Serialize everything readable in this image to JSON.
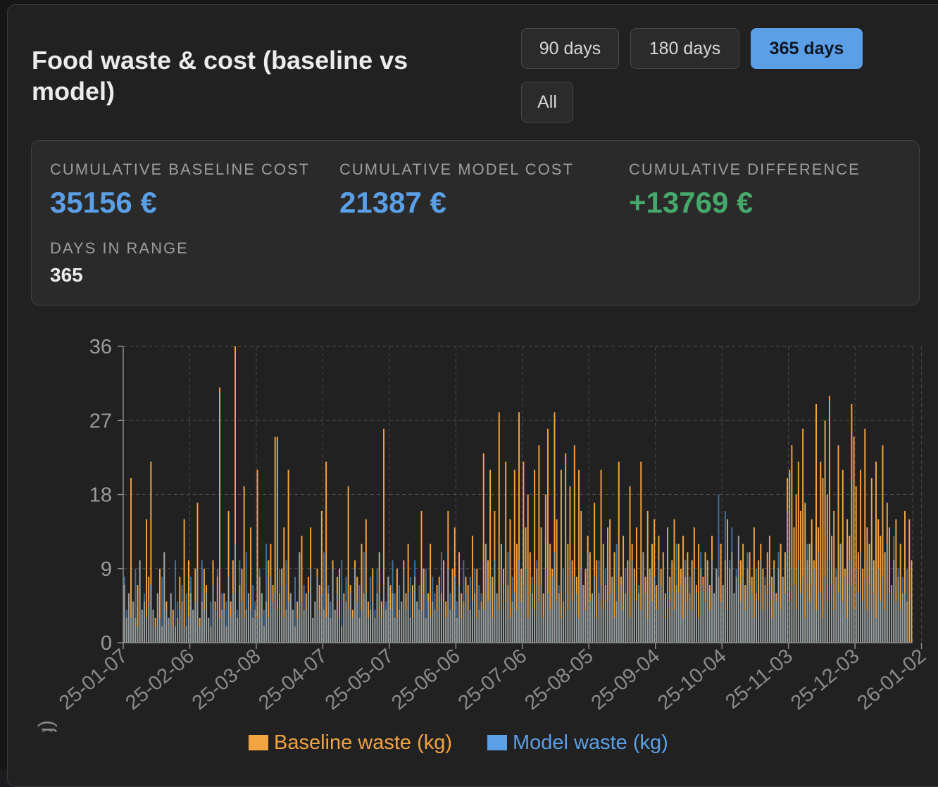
{
  "header": {
    "title": "Food waste & cost (baseline vs model)"
  },
  "range_buttons": [
    {
      "label": "90 days",
      "active": false
    },
    {
      "label": "180 days",
      "active": false
    },
    {
      "label": "365 days",
      "active": true
    },
    {
      "label": "All",
      "active": false
    }
  ],
  "stats": {
    "baseline_label": "CUMULATIVE BASELINE COST",
    "baseline_value": "35156 €",
    "model_label": "CUMULATIVE MODEL COST",
    "model_value": "21387 €",
    "difference_label": "CUMULATIVE DIFFERENCE",
    "difference_value": "+13769 €",
    "days_label": "DAYS IN RANGE",
    "days_value": "365"
  },
  "colors": {
    "baseline": "#f2a441",
    "model": "#5b9fe6",
    "positive": "#46a86a",
    "accent": "#5b9fe6"
  },
  "chart_data": {
    "type": "bar",
    "title": "",
    "xlabel": "",
    "ylabel": "Waste (kg)",
    "ylim": [
      0,
      36
    ],
    "yticks": [
      0,
      9,
      18,
      27,
      36
    ],
    "x_start": "25-01-07",
    "x_end": "26-01-06",
    "xticks": [
      "25-01-07",
      "25-02-06",
      "25-03-08",
      "25-04-07",
      "25-05-07",
      "25-06-06",
      "25-07-06",
      "25-08-05",
      "25-09-04",
      "25-10-04",
      "25-11-03",
      "25-12-03",
      "26-01-02"
    ],
    "grid": {
      "x": true,
      "y": true,
      "style": "dashed"
    },
    "legend_position": "bottom",
    "series": [
      {
        "name": "Baseline waste (kg)",
        "color": "#f2a441",
        "values": [
          7,
          3,
          6,
          20,
          5,
          3,
          7,
          10,
          4,
          5,
          15,
          8,
          22,
          4,
          3,
          6,
          9,
          2,
          11,
          5,
          3,
          6,
          4,
          2,
          3,
          8,
          5,
          15,
          2,
          10,
          6,
          4,
          9,
          17,
          3,
          5,
          9,
          7,
          3,
          2,
          10,
          5,
          8,
          31,
          4,
          6,
          2,
          16,
          5,
          10,
          36,
          3,
          7,
          9,
          19,
          4,
          6,
          14,
          3,
          4,
          21,
          8,
          6,
          2,
          5,
          10,
          12,
          7,
          25,
          25,
          6,
          9,
          14,
          4,
          21,
          6,
          4,
          2,
          5,
          11,
          13,
          4,
          6,
          8,
          14,
          3,
          5,
          9,
          7,
          16,
          4,
          22,
          6,
          3,
          10,
          4,
          8,
          9,
          2,
          6,
          5,
          19,
          7,
          4,
          10,
          8,
          3,
          12,
          6,
          15,
          5,
          4,
          9,
          3,
          6,
          11,
          5,
          26,
          4,
          8,
          7,
          6,
          3,
          9,
          4,
          5,
          10,
          6,
          12,
          3,
          7,
          8,
          5,
          4,
          16,
          9,
          3,
          6,
          12,
          5,
          4,
          7,
          8,
          6,
          10,
          5,
          16,
          4,
          9,
          14,
          3,
          11,
          6,
          5,
          8,
          7,
          4,
          13,
          6,
          9,
          4,
          5,
          23,
          12,
          10,
          21,
          8,
          16,
          6,
          28,
          12,
          9,
          22,
          7,
          15,
          5,
          21,
          12,
          28,
          9,
          22,
          14,
          18,
          11,
          6,
          21,
          9,
          24,
          14,
          6,
          18,
          26,
          12,
          9,
          28,
          15,
          6,
          21,
          5,
          23,
          12,
          19,
          10,
          24,
          8,
          21,
          16,
          7,
          9,
          13,
          11,
          6,
          17,
          10,
          6,
          21,
          12,
          7,
          14,
          15,
          8,
          11,
          5,
          22,
          8,
          13,
          6,
          10,
          19,
          12,
          9,
          14,
          6,
          22,
          11,
          8,
          16,
          9,
          12,
          15,
          7,
          13,
          9,
          11,
          6,
          14,
          8,
          10,
          15,
          7,
          12,
          9,
          13,
          8,
          11,
          6,
          10,
          14,
          7,
          12,
          9,
          8,
          11,
          10,
          7,
          13,
          6,
          9,
          8,
          12,
          7,
          10,
          15,
          9,
          11,
          6,
          8,
          13,
          10,
          12,
          7,
          9,
          11,
          8,
          14,
          6,
          10,
          12,
          9,
          7,
          11,
          13,
          8,
          10,
          6,
          9,
          12,
          8,
          11,
          20,
          21,
          24,
          14,
          18,
          22,
          16,
          26,
          17,
          10,
          12,
          15,
          10,
          29,
          14,
          22,
          20,
          27,
          18,
          30,
          13,
          16,
          8,
          24,
          12,
          21,
          9,
          15,
          13,
          29,
          25,
          19,
          11,
          21,
          9,
          26,
          14,
          12,
          20,
          10,
          22,
          15,
          13,
          24,
          11,
          17,
          14,
          7,
          10,
          15,
          8,
          12,
          6,
          16,
          5,
          15,
          10
        ]
      },
      {
        "name": "Model waste (kg)",
        "color": "#5b9fe6",
        "values": [
          8,
          4,
          6,
          3,
          5,
          9,
          2,
          10,
          4,
          6,
          3,
          5,
          7,
          4,
          2,
          6,
          3,
          8,
          11,
          4,
          3,
          6,
          2,
          10,
          5,
          4,
          7,
          2,
          6,
          3,
          8,
          4,
          5,
          9,
          2,
          10,
          4,
          6,
          3,
          5,
          7,
          4,
          9,
          3,
          6,
          4,
          5,
          8,
          3,
          6,
          12,
          4,
          10,
          5,
          3,
          11,
          6,
          4,
          7,
          5,
          3,
          9,
          6,
          4,
          12,
          3,
          8,
          5,
          6,
          4,
          9,
          7,
          3,
          10,
          5,
          6,
          4,
          8,
          3,
          11,
          5,
          7,
          4,
          6,
          9,
          3,
          5,
          8,
          4,
          6,
          11,
          3,
          7,
          5,
          9,
          4,
          6,
          3,
          10,
          5,
          8,
          4,
          6,
          3,
          9,
          5,
          7,
          4,
          11,
          6,
          3,
          8,
          5,
          4,
          9,
          6,
          3,
          7,
          5,
          8,
          4,
          10,
          6,
          3,
          7,
          5,
          9,
          4,
          6,
          8,
          3,
          10,
          5,
          7,
          4,
          6,
          9,
          5,
          3,
          8,
          6,
          4,
          7,
          11,
          5,
          3,
          9,
          6,
          4,
          8,
          5,
          7,
          3,
          10,
          6,
          4,
          8,
          5,
          9,
          3,
          7,
          6,
          4,
          12,
          5,
          8,
          3,
          10,
          6,
          4,
          9,
          7,
          5,
          11,
          3,
          8,
          6,
          4,
          10,
          5,
          7,
          9,
          3,
          6,
          8,
          4,
          10,
          5,
          7,
          3,
          9,
          6,
          4,
          8,
          11,
          5,
          7,
          3,
          9,
          6,
          4,
          10,
          5,
          8,
          6,
          3,
          9,
          7,
          4,
          11,
          5,
          6,
          8,
          3,
          10,
          7,
          4,
          9,
          5,
          6,
          8,
          3,
          12,
          5,
          7,
          4,
          9,
          6,
          3,
          10,
          8,
          5,
          7,
          4,
          11,
          6,
          3,
          9,
          5,
          8,
          4,
          10,
          7,
          6,
          3,
          9,
          5,
          8,
          4,
          12,
          6,
          7,
          3,
          10,
          5,
          8,
          4,
          9,
          6,
          3,
          11,
          7,
          5,
          8,
          4,
          10,
          6,
          9,
          18,
          5,
          7,
          16,
          4,
          10,
          14,
          6,
          9,
          13,
          5,
          8,
          4,
          11,
          7,
          6,
          3,
          9,
          5,
          10,
          4,
          8,
          6,
          7,
          3,
          9,
          5,
          11,
          4,
          8,
          6,
          16,
          5,
          9,
          7,
          4,
          10,
          6,
          8,
          3,
          12,
          5,
          7,
          9,
          4,
          11,
          6,
          3,
          8,
          5,
          10,
          7,
          4,
          9,
          6,
          12,
          5,
          8,
          3,
          10,
          7,
          4,
          9,
          6,
          11,
          5,
          8,
          4,
          7,
          10,
          6,
          3,
          9,
          5,
          8,
          4,
          12,
          6,
          7,
          13,
          5,
          9,
          4,
          8,
          6,
          9
        ]
      }
    ]
  }
}
